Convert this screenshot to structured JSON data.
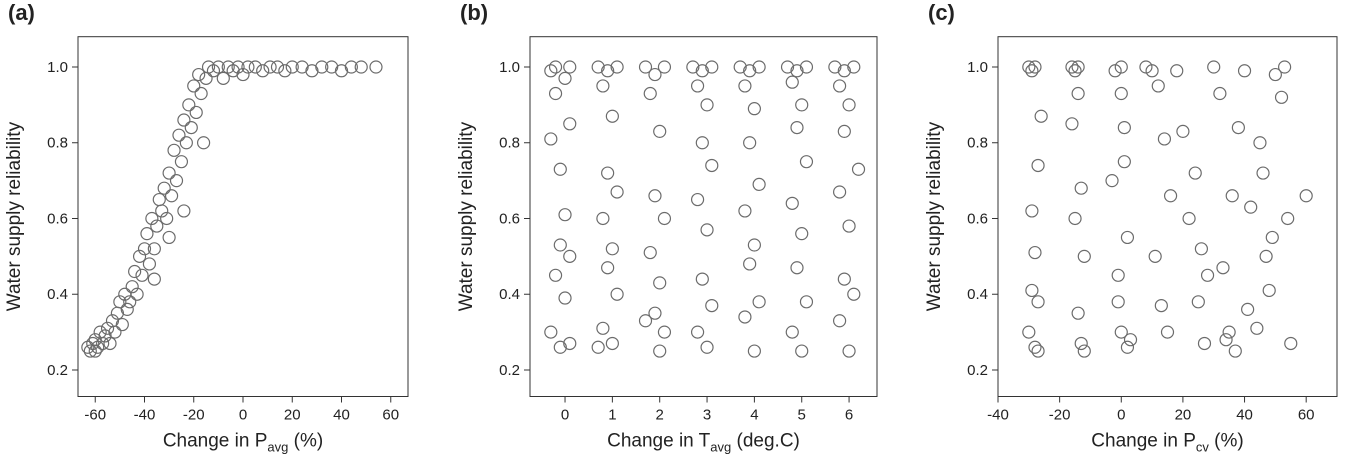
{
  "chart_data": [
    {
      "type": "scatter",
      "title": "(a)",
      "y_label": "Water supply reliability",
      "x_label": {
        "main": "Change in P",
        "sub": "avg",
        "suffix": " (%)"
      },
      "marker_color": "#6b6b6b",
      "xlim": [
        -67,
        67
      ],
      "ylim": [
        0.13,
        1.08
      ],
      "xticks": [
        -60,
        -40,
        -20,
        0,
        20,
        40,
        60
      ],
      "yticks": [
        0.2,
        0.4,
        0.6,
        0.8,
        {
          "value": 1,
          "label": "1.0"
        }
      ],
      "x": [
        -63,
        -62,
        -61,
        -60,
        -60,
        -59,
        -58,
        -57,
        -56,
        -55,
        -54,
        -53,
        -52,
        -51,
        -50,
        -49,
        -48,
        -47,
        -46,
        -45,
        -44,
        -43,
        -42,
        -41,
        -40,
        -39,
        -38,
        -37,
        -36,
        -35,
        -34,
        -33,
        -32,
        -31,
        -30,
        -29,
        -28,
        -27,
        -26,
        -25,
        -24,
        -23,
        -22,
        -21,
        -20,
        -19,
        -18,
        -17,
        -15,
        -14,
        -12,
        -10,
        -8,
        -6,
        -4,
        -2,
        0,
        2,
        5,
        8,
        11,
        14,
        17,
        20,
        24,
        28,
        32,
        36,
        40,
        44,
        48,
        54,
        -16,
        -24,
        -30,
        -36
      ],
      "values": [
        0.26,
        0.25,
        0.27,
        0.25,
        0.28,
        0.26,
        0.3,
        0.27,
        0.29,
        0.31,
        0.27,
        0.33,
        0.3,
        0.35,
        0.38,
        0.32,
        0.4,
        0.36,
        0.38,
        0.42,
        0.46,
        0.4,
        0.5,
        0.45,
        0.52,
        0.56,
        0.48,
        0.6,
        0.52,
        0.58,
        0.65,
        0.62,
        0.68,
        0.6,
        0.72,
        0.66,
        0.78,
        0.7,
        0.82,
        0.75,
        0.86,
        0.8,
        0.9,
        0.84,
        0.95,
        0.88,
        0.98,
        0.93,
        0.97,
        1.0,
        0.99,
        1.0,
        0.97,
        1.0,
        0.99,
        1.0,
        0.98,
        1.0,
        1.0,
        0.99,
        1.0,
        1.0,
        0.99,
        1.0,
        1.0,
        0.99,
        1.0,
        1.0,
        0.99,
        1.0,
        1.0,
        1.0,
        0.8,
        0.62,
        0.55,
        0.44
      ]
    },
    {
      "type": "scatter",
      "title": "(b)",
      "y_label": "Water supply reliability",
      "x_label": {
        "main": "Change in T",
        "sub": "avg",
        "suffix": " (deg.C)"
      },
      "marker_color": "#6b6b6b",
      "xlim": [
        -0.74,
        6.59
      ],
      "ylim": [
        0.13,
        1.08
      ],
      "xticks": [
        0,
        1,
        2,
        3,
        4,
        5,
        6
      ],
      "yticks": [
        0.2,
        0.4,
        0.6,
        0.8,
        {
          "value": 1,
          "label": "1.0"
        }
      ],
      "x": [
        -0.3,
        -0.2,
        0,
        0.1,
        -0.2,
        0.1,
        -0.3,
        -0.1,
        0,
        -0.1,
        0.1,
        -0.2,
        0,
        -0.3,
        0.1,
        -0.1,
        0.7,
        0.9,
        1.1,
        0.8,
        1.0,
        0.9,
        1.1,
        0.8,
        1.0,
        0.9,
        1.1,
        0.8,
        1.0,
        0.7,
        1.7,
        1.9,
        2.1,
        1.8,
        2.0,
        1.9,
        2.1,
        1.8,
        2.0,
        1.9,
        2.1,
        1.7,
        2.0,
        2.7,
        2.9,
        3.1,
        2.8,
        3.0,
        2.9,
        3.1,
        2.8,
        3.0,
        2.9,
        3.1,
        2.8,
        3.0,
        3.7,
        3.9,
        4.1,
        3.8,
        4.0,
        3.9,
        4.1,
        3.8,
        4.0,
        3.9,
        4.1,
        3.8,
        4.0,
        4.7,
        4.9,
        5.1,
        4.8,
        5.0,
        4.9,
        5.1,
        4.8,
        5.0,
        4.9,
        5.1,
        4.8,
        5.0,
        5.7,
        5.9,
        6.1,
        5.8,
        6.0,
        5.9,
        6.2,
        5.8,
        6.0,
        5.9,
        6.1,
        5.8,
        6.0
      ],
      "values": [
        0.99,
        1.0,
        0.97,
        1.0,
        0.93,
        0.85,
        0.81,
        0.73,
        0.61,
        0.53,
        0.5,
        0.45,
        0.39,
        0.3,
        0.27,
        0.26,
        1.0,
        0.99,
        1.0,
        0.95,
        0.87,
        0.72,
        0.67,
        0.6,
        0.52,
        0.47,
        0.4,
        0.31,
        0.27,
        0.26,
        1.0,
        0.98,
        1.0,
        0.93,
        0.83,
        0.66,
        0.6,
        0.51,
        0.43,
        0.35,
        0.3,
        0.33,
        0.25,
        1.0,
        0.99,
        1.0,
        0.95,
        0.9,
        0.8,
        0.74,
        0.65,
        0.57,
        0.44,
        0.37,
        0.3,
        0.26,
        1.0,
        0.99,
        1.0,
        0.95,
        0.89,
        0.8,
        0.69,
        0.62,
        0.53,
        0.48,
        0.38,
        0.34,
        0.25,
        1.0,
        0.99,
        1.0,
        0.96,
        0.9,
        0.84,
        0.75,
        0.64,
        0.56,
        0.47,
        0.38,
        0.3,
        0.25,
        1.0,
        0.99,
        1.0,
        0.95,
        0.9,
        0.83,
        0.73,
        0.67,
        0.58,
        0.44,
        0.4,
        0.33,
        0.25
      ]
    },
    {
      "type": "scatter",
      "title": "(c)",
      "y_label": "Water supply reliability",
      "x_label": {
        "main": "Change in P",
        "sub": "cv",
        "suffix": " (%)"
      },
      "marker_color": "#6b6b6b",
      "xlim": [
        -40,
        70
      ],
      "ylim": [
        0.13,
        1.08
      ],
      "xticks": [
        -40,
        -20,
        0,
        20,
        40,
        60
      ],
      "yticks": [
        0.2,
        0.4,
        0.6,
        0.8,
        {
          "value": 1,
          "label": "1.0"
        }
      ],
      "x": [
        -30,
        -29,
        -28,
        -27,
        -26,
        -29,
        -28,
        -27,
        -30,
        -28,
        -27,
        -29,
        -16,
        -15,
        -14,
        -13,
        -12,
        -16,
        -14,
        -13,
        -15,
        -12,
        -14,
        -2,
        0,
        1,
        2,
        -1,
        0,
        2,
        -3,
        0,
        1,
        3,
        -1,
        8,
        10,
        12,
        14,
        16,
        11,
        13,
        15,
        18,
        20,
        22,
        25,
        27,
        24,
        26,
        30,
        32,
        28,
        34,
        36,
        38,
        40,
        42,
        44,
        46,
        48,
        50,
        52,
        54,
        41,
        45,
        49,
        53,
        55,
        60,
        35,
        33,
        37,
        47
      ],
      "values": [
        1.0,
        0.99,
        1.0,
        0.74,
        0.87,
        0.62,
        0.51,
        0.38,
        0.3,
        0.26,
        0.25,
        0.41,
        1.0,
        0.99,
        0.93,
        0.68,
        0.5,
        0.85,
        0.35,
        0.27,
        0.6,
        0.25,
        1.0,
        0.99,
        1.0,
        0.84,
        0.55,
        0.38,
        0.3,
        0.26,
        0.7,
        0.93,
        0.75,
        0.28,
        0.45,
        1.0,
        0.99,
        0.95,
        0.81,
        0.66,
        0.5,
        0.37,
        0.3,
        0.99,
        0.83,
        0.6,
        0.38,
        0.27,
        0.72,
        0.52,
        1.0,
        0.93,
        0.45,
        0.28,
        0.66,
        0.84,
        0.99,
        0.63,
        0.31,
        0.72,
        0.41,
        0.98,
        0.92,
        0.6,
        0.36,
        0.8,
        0.55,
        1.0,
        0.27,
        0.66,
        0.3,
        0.47,
        0.25,
        0.5
      ]
    }
  ]
}
